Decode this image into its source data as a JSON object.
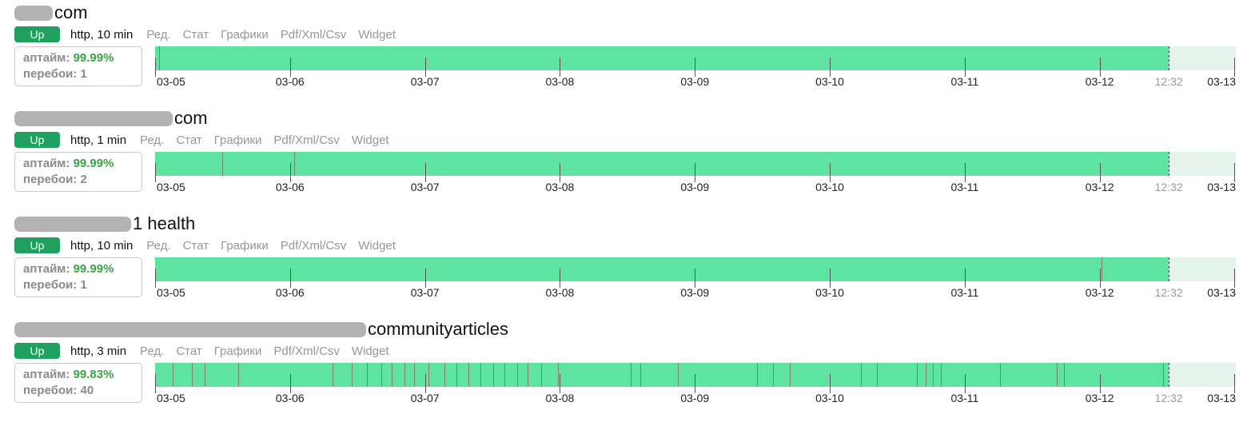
{
  "labels": {
    "uptime": "аптайм:",
    "outages": "перебои:"
  },
  "links": [
    "Ред.",
    "Стат",
    "Графики",
    "Pdf/Xml/Csv",
    "Widget"
  ],
  "axis": {
    "dates": [
      "03-05",
      "03-06",
      "03-07",
      "03-08",
      "03-09",
      "03-10",
      "03-11",
      "03-12",
      "03-13"
    ],
    "day_pct": 12.486,
    "now_label": "12:32",
    "now_pct": 93.8
  },
  "colors": {
    "up_green": "#1fa05e",
    "bar_green": "#5fe3a0",
    "bar_future": "#e4f3eb",
    "uptime_green": "#3ba447",
    "mark_color": "#80806f"
  },
  "monitors": [
    {
      "title_visible": "com",
      "status": "Up",
      "check": "http, 10 min",
      "uptime": "99.99%",
      "outages": "1",
      "outage_marks_pct": [
        0.4
      ]
    },
    {
      "title_visible": "com",
      "status": "Up",
      "check": "http, 1 min",
      "uptime": "99.99%",
      "outages": "2",
      "outage_marks_pct": [
        6.2,
        12.9
      ]
    },
    {
      "title_visible": "1 health",
      "status": "Up",
      "check": "http, 10 min",
      "uptime": "99.99%",
      "outages": "1",
      "outage_marks_pct": [
        87.6
      ]
    },
    {
      "title_visible": "communityarticles",
      "status": "Up",
      "check": "http, 3 min",
      "uptime": "99.83%",
      "outages": "40",
      "outage_marks_pct": [
        1.6,
        3.4,
        4.6,
        7.7,
        16.4,
        18.2,
        19.6,
        20.9,
        21.9,
        23.1,
        24.0,
        25.3,
        26.8,
        27.9,
        29.0,
        30.1,
        31.3,
        32.3,
        33.5,
        34.5,
        35.7,
        37.3,
        44.0,
        44.9,
        48.4,
        55.7,
        57.2,
        58.7,
        65.3,
        66.8,
        70.5,
        71.3,
        72.0,
        72.7,
        78.2,
        83.4,
        84.1,
        93.3
      ]
    }
  ]
}
